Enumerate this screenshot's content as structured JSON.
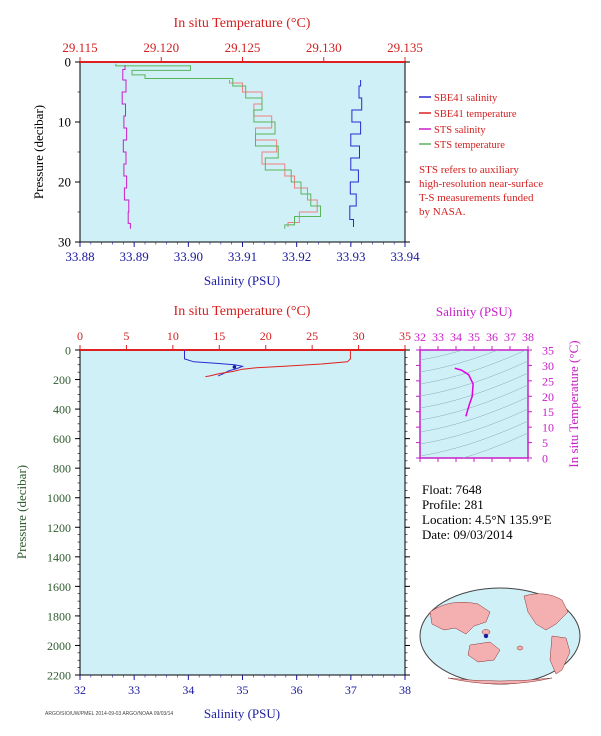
{
  "chart_data": [
    {
      "type": "line",
      "name": "near-surface profile",
      "top_axis": {
        "label": "In situ Temperature (°C)",
        "range": [
          29.115,
          29.135
        ],
        "ticks": [
          "29.115",
          "29.120",
          "29.125",
          "29.130",
          "29.135"
        ]
      },
      "bottom_axis": {
        "label": "Salinity (PSU)",
        "range": [
          33.88,
          33.94
        ],
        "ticks": [
          "33.88",
          "33.89",
          "33.90",
          "33.91",
          "33.92",
          "33.93",
          "33.94"
        ]
      },
      "left_axis": {
        "label": "Pressure (decibar)",
        "range": [
          0,
          30
        ],
        "inverted": true,
        "ticks": [
          "0",
          "10",
          "20",
          "30"
        ]
      },
      "series": [
        {
          "name": "SBE41 salinity",
          "axis": "salinity",
          "color": "#2a2ad0",
          "points": [
            [
              33.9318,
              3
            ],
            [
              33.9315,
              5
            ],
            [
              33.932,
              7
            ],
            [
              33.9302,
              9
            ],
            [
              33.9318,
              11
            ],
            [
              33.93,
              13
            ],
            [
              33.9316,
              15
            ],
            [
              33.93,
              17
            ],
            [
              33.9314,
              19
            ],
            [
              33.9299,
              21
            ],
            [
              33.931,
              23
            ],
            [
              33.9298,
              25
            ],
            [
              33.9305,
              27.5
            ]
          ]
        },
        {
          "name": "SBE41 temperature",
          "axis": "temperature",
          "color": "#f08080",
          "points": [
            [
              29.1242,
              3
            ],
            [
              29.125,
              4
            ],
            [
              29.1262,
              6
            ],
            [
              29.1257,
              8
            ],
            [
              29.1268,
              10
            ],
            [
              29.1258,
              12
            ],
            [
              29.1271,
              14
            ],
            [
              29.1262,
              16
            ],
            [
              29.1276,
              18
            ],
            [
              29.1282,
              20
            ],
            [
              29.129,
              22
            ],
            [
              29.1296,
              24
            ],
            [
              29.1285,
              26
            ],
            [
              29.1278,
              27.5
            ]
          ]
        },
        {
          "name": "STS salinity",
          "axis": "salinity",
          "color": "#c81ec8",
          "points": [
            [
              33.8883,
              0.5
            ],
            [
              33.8879,
              2
            ],
            [
              33.8885,
              4
            ],
            [
              33.8878,
              6
            ],
            [
              33.8884,
              8
            ],
            [
              33.8881,
              10
            ],
            [
              33.8886,
              12
            ],
            [
              33.888,
              14
            ],
            [
              33.8885,
              16
            ],
            [
              33.8881,
              18
            ],
            [
              33.8886,
              20
            ],
            [
              33.8882,
              22
            ],
            [
              33.889,
              24
            ],
            [
              33.8889,
              26
            ],
            [
              33.8893,
              27.8
            ]
          ]
        },
        {
          "name": "STS temperature",
          "axis": "temperature",
          "color": "#5ab45a",
          "points": [
            [
              29.1172,
              0.3
            ],
            [
              29.1218,
              1
            ],
            [
              29.1182,
              1.8
            ],
            [
              29.119,
              2.5
            ],
            [
              29.1244,
              3
            ],
            [
              29.1252,
              5
            ],
            [
              29.1262,
              7
            ],
            [
              29.1257,
              9
            ],
            [
              29.127,
              11
            ],
            [
              29.1258,
              13
            ],
            [
              29.1272,
              15
            ],
            [
              29.1264,
              17
            ],
            [
              29.128,
              19
            ],
            [
              29.1286,
              21
            ],
            [
              29.1292,
              23
            ],
            [
              29.1298,
              25
            ],
            [
              29.1282,
              26.5
            ],
            [
              29.1276,
              27.8
            ]
          ]
        }
      ],
      "legend_placement": "right"
    },
    {
      "type": "line",
      "name": "full profile",
      "top_axis": {
        "label": "In situ Temperature (°C)",
        "range": [
          0,
          35
        ],
        "ticks": [
          "0",
          "5",
          "10",
          "15",
          "20",
          "25",
          "30",
          "35"
        ]
      },
      "bottom_axis": {
        "label": "Salinity (PSU)",
        "range": [
          32,
          38
        ],
        "ticks": [
          "32",
          "33",
          "34",
          "35",
          "36",
          "37",
          "38"
        ]
      },
      "left_axis": {
        "label": "Pressure (decibar)",
        "range": [
          0,
          2200
        ],
        "inverted": true,
        "ticks": [
          "0",
          "200",
          "400",
          "600",
          "800",
          "1000",
          "1200",
          "1400",
          "1600",
          "1800",
          "2000",
          "2200"
        ]
      },
      "series": [
        {
          "name": "salinity",
          "axis": "salinity",
          "color": "#2a2ad0",
          "points": [
            [
              33.93,
              2
            ],
            [
              33.93,
              60
            ],
            [
              34.1,
              80
            ],
            [
              34.5,
              90
            ],
            [
              34.85,
              100
            ],
            [
              35.0,
              110
            ],
            [
              34.9,
              125
            ],
            [
              34.75,
              140
            ],
            [
              34.65,
              160
            ],
            [
              34.55,
              175
            ]
          ]
        },
        {
          "name": "temperature",
          "axis": "temperature",
          "color": "#e02020",
          "points": [
            [
              29.12,
              2
            ],
            [
              29.12,
              60
            ],
            [
              28.8,
              80
            ],
            [
              26.0,
              95
            ],
            [
              22.0,
              110
            ],
            [
              19.0,
              120
            ],
            [
              17.5,
              130
            ],
            [
              16.5,
              145
            ],
            [
              15.0,
              160
            ],
            [
              14.0,
              175
            ],
            [
              13.5,
              180
            ]
          ]
        }
      ]
    },
    {
      "type": "line",
      "name": "T-S diagram",
      "top_axis": {
        "label": "Salinity (PSU)",
        "range": [
          32,
          38
        ],
        "ticks": [
          "32",
          "33",
          "34",
          "35",
          "36",
          "37",
          "38"
        ]
      },
      "right_axis": {
        "label": "In situ Temperature (°C)",
        "range": [
          0,
          35
        ],
        "ticks": [
          "35",
          "30",
          "25",
          "20",
          "15",
          "10",
          "5",
          "0"
        ]
      },
      "series": [
        {
          "name": "profile",
          "color": "#e000e0",
          "points": [
            [
              33.93,
              29.1
            ],
            [
              34.3,
              28.5
            ],
            [
              34.7,
              27.0
            ],
            [
              34.95,
              24.0
            ],
            [
              34.9,
              20.0
            ],
            [
              34.75,
              17.5
            ],
            [
              34.62,
              15.0
            ],
            [
              34.55,
              13.5
            ]
          ]
        }
      ]
    }
  ],
  "legend": {
    "items": [
      {
        "label": "SBE41 salinity",
        "color": "#2a2ad0"
      },
      {
        "label": "SBE41 temperature",
        "color": "#e02020"
      },
      {
        "label": "STS salinity",
        "color": "#c81ec8"
      },
      {
        "label": "STS temperature",
        "color": "#5ab45a"
      }
    ],
    "note": [
      "STS refers to auxiliary",
      "high-resolution near-surface",
      "T-S measurements funded",
      "by NASA."
    ]
  },
  "info": {
    "float": "Float:  7648",
    "profile": "Profile:  281",
    "location": "Location:  4.5°N  135.9°E",
    "date": "Date:  09/03/2014"
  },
  "map": {
    "marker_lat": 4.5,
    "marker_lon": 135.9,
    "icon": "world-map-icon"
  },
  "credit": "ARGO/SIO/UW/PMEL 2014-09-03 ARGO/NOAA  09/03/14"
}
